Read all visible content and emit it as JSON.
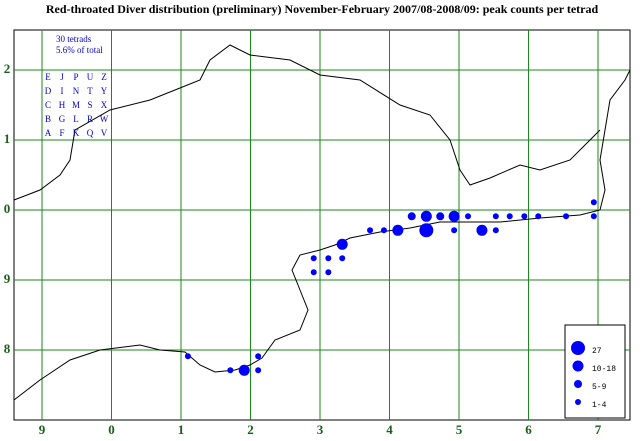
{
  "title": "Red-throated Diver distribution (preliminary) November-February 2007/08-2008/09: peak counts per tetrad",
  "summary": [
    "30 tetrads",
    "5.6% of total"
  ],
  "tetrad_letters": [
    [
      "E",
      "J",
      "P",
      "U",
      "Z"
    ],
    [
      "D",
      "I",
      "N",
      "T",
      "Y"
    ],
    [
      "C",
      "H",
      "M",
      "S",
      "X"
    ],
    [
      "B",
      "G",
      "L",
      "R",
      "W"
    ],
    [
      "A",
      "F",
      "K",
      "Q",
      "V"
    ]
  ],
  "x_grid_labels": [
    "9",
    "0",
    "1",
    "2",
    "3",
    "4",
    "5",
    "6",
    "7"
  ],
  "y_grid_labels": [
    "8",
    "9",
    "0",
    "1",
    "2"
  ],
  "legend": [
    {
      "label": "27",
      "dots": [
        {
          "x": 5.53,
          "y": 1.71
        }
      ]
    },
    {
      "label": "10-18",
      "dots": [
        {
          "x": 2.91,
          "y": -0.29
        },
        {
          "x": 4.32,
          "y": 1.51
        },
        {
          "x": 5.12,
          "y": 1.71
        },
        {
          "x": 5.53,
          "y": 1.91
        },
        {
          "x": 5.93,
          "y": 1.91
        },
        {
          "x": 6.33,
          "y": 1.71
        }
      ]
    },
    {
      "label": "5-9",
      "dots": [
        {
          "x": 5.32,
          "y": 1.91
        },
        {
          "x": 5.73,
          "y": 1.91
        }
      ]
    },
    {
      "label": "1-4",
      "dots": [
        {
          "x": 2.1,
          "y": -0.09
        },
        {
          "x": 2.71,
          "y": -0.29
        },
        {
          "x": 3.11,
          "y": -0.09
        },
        {
          "x": 3.11,
          "y": -0.29
        },
        {
          "x": 3.91,
          "y": 1.31
        },
        {
          "x": 3.91,
          "y": 1.11
        },
        {
          "x": 4.12,
          "y": 1.31
        },
        {
          "x": 4.12,
          "y": 1.11
        },
        {
          "x": 4.32,
          "y": 1.31
        },
        {
          "x": 4.72,
          "y": 1.71
        },
        {
          "x": 4.92,
          "y": 1.71
        },
        {
          "x": 5.93,
          "y": 1.71
        },
        {
          "x": 6.13,
          "y": 1.91
        },
        {
          "x": 6.53,
          "y": 1.91
        },
        {
          "x": 6.53,
          "y": 1.71
        },
        {
          "x": 6.73,
          "y": 1.91
        },
        {
          "x": 6.94,
          "y": 1.91
        },
        {
          "x": 7.14,
          "y": 1.91
        },
        {
          "x": 7.54,
          "y": 1.91
        },
        {
          "x": 7.94,
          "y": 1.91
        },
        {
          "x": 7.94,
          "y": 2.11
        }
      ]
    }
  ]
}
